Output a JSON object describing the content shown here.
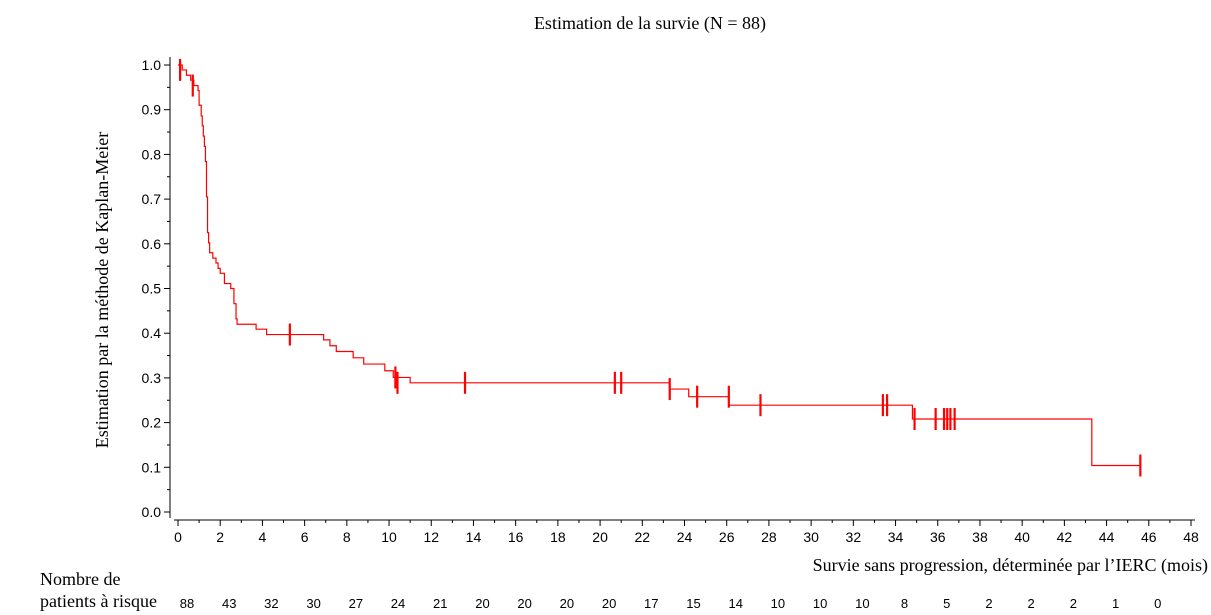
{
  "chart_data": {
    "type": "line",
    "title": "Estimation de la survie (N = 88)",
    "xlabel": "Survie sans progression, déterminée par l’IERC (mois)",
    "ylabel": "Estimation par la méthode de Kaplan-Meier",
    "xlim": [
      0,
      48
    ],
    "ylim": [
      0.0,
      1.0
    ],
    "x_ticks": [
      "0",
      "2",
      "4",
      "6",
      "8",
      "10",
      "12",
      "14",
      "16",
      "18",
      "20",
      "22",
      "24",
      "26",
      "28",
      "30",
      "32",
      "34",
      "36",
      "38",
      "40",
      "42",
      "44",
      "46",
      "48"
    ],
    "y_ticks": [
      "0.0",
      "0.1",
      "0.2",
      "0.3",
      "0.4",
      "0.5",
      "0.6",
      "0.7",
      "0.8",
      "0.9",
      "1.0"
    ],
    "grid": false,
    "color": "#ff0000",
    "step_points": [
      [
        0,
        1.0
      ],
      [
        0.2,
        0.989
      ],
      [
        0.4,
        0.977
      ],
      [
        0.6,
        0.966
      ],
      [
        0.75,
        0.954
      ],
      [
        0.95,
        0.943
      ],
      [
        1.0,
        0.91
      ],
      [
        1.1,
        0.886
      ],
      [
        1.15,
        0.864
      ],
      [
        1.2,
        0.841
      ],
      [
        1.25,
        0.818
      ],
      [
        1.3,
        0.784
      ],
      [
        1.35,
        0.705
      ],
      [
        1.4,
        0.625
      ],
      [
        1.45,
        0.602
      ],
      [
        1.5,
        0.58
      ],
      [
        1.65,
        0.568
      ],
      [
        1.8,
        0.557
      ],
      [
        1.9,
        0.545
      ],
      [
        2.0,
        0.534
      ],
      [
        2.2,
        0.511
      ],
      [
        2.5,
        0.5
      ],
      [
        2.65,
        0.466
      ],
      [
        2.75,
        0.432
      ],
      [
        2.8,
        0.42
      ],
      [
        3.7,
        0.409
      ],
      [
        4.2,
        0.397
      ],
      [
        6.9,
        0.385
      ],
      [
        7.2,
        0.372
      ],
      [
        7.5,
        0.359
      ],
      [
        8.3,
        0.345
      ],
      [
        8.8,
        0.331
      ],
      [
        9.8,
        0.316
      ],
      [
        10.2,
        0.301
      ],
      [
        11.0,
        0.289
      ],
      [
        23.3,
        0.275
      ],
      [
        24.2,
        0.258
      ],
      [
        26.1,
        0.239
      ],
      [
        34.8,
        0.208
      ],
      [
        43.3,
        0.104
      ],
      [
        45.6,
        0.104
      ]
    ],
    "censored": [
      [
        0.1,
        0.989
      ],
      [
        0.7,
        0.954
      ],
      [
        5.3,
        0.397
      ],
      [
        10.3,
        0.301
      ],
      [
        10.4,
        0.289
      ],
      [
        13.6,
        0.289
      ],
      [
        20.7,
        0.289
      ],
      [
        21.0,
        0.289
      ],
      [
        23.3,
        0.275
      ],
      [
        24.6,
        0.258
      ],
      [
        26.1,
        0.258
      ],
      [
        27.6,
        0.239
      ],
      [
        33.4,
        0.239
      ],
      [
        33.6,
        0.239
      ],
      [
        34.9,
        0.208
      ],
      [
        35.9,
        0.208
      ],
      [
        36.3,
        0.208
      ],
      [
        36.45,
        0.208
      ],
      [
        36.6,
        0.208
      ],
      [
        36.8,
        0.208
      ],
      [
        45.6,
        0.104
      ]
    ],
    "at_risk": {
      "label_line1": "Nombre de",
      "label_line2": "patients à risque",
      "values": [
        "88",
        "43",
        "32",
        "30",
        "27",
        "24",
        "21",
        "20",
        "20",
        "20",
        "20",
        "17",
        "15",
        "14",
        "10",
        "10",
        "10",
        "8",
        "5",
        "2",
        "2",
        "2",
        "1",
        "0"
      ]
    }
  }
}
